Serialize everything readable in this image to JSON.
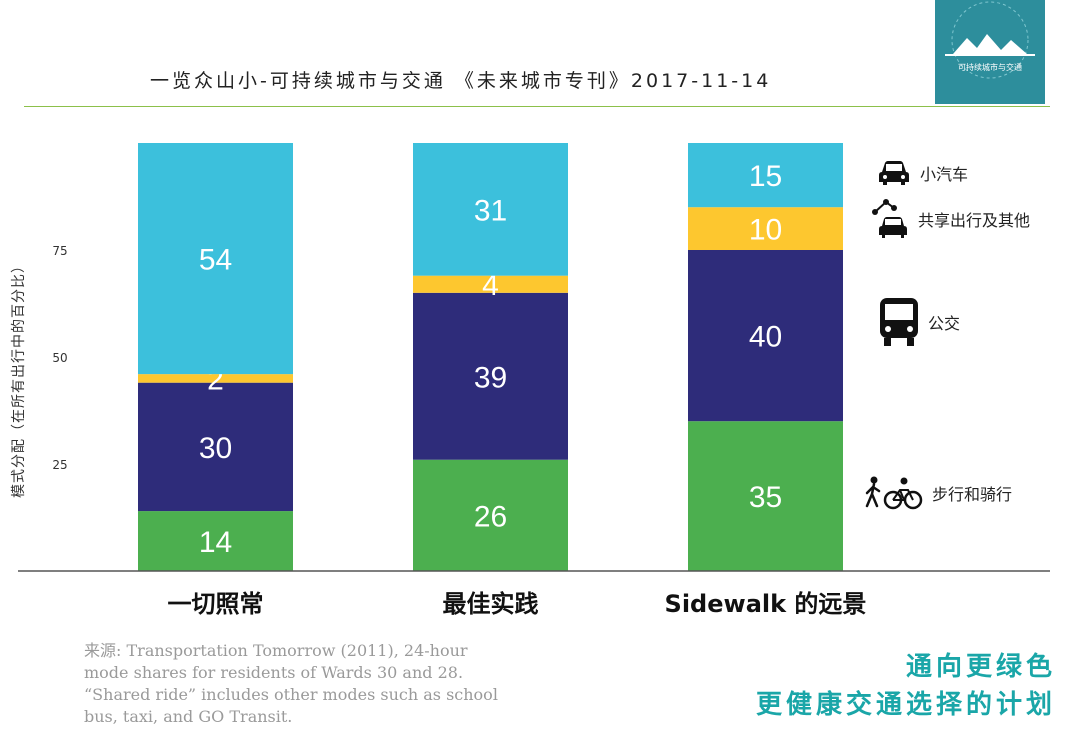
{
  "header": {
    "title": "一览众山小-可持续城市与交通 《未来城市专刊》2017-11-14"
  },
  "logo": {
    "text": "可持续城市与交通",
    "bg_color": "#2d8e9c"
  },
  "colors": {
    "car": "#3cc0dc",
    "shared": "#fdc72f",
    "transit": "#2e2c7a",
    "active": "#4caf4f",
    "rule": "#8cc04a",
    "tagline": "#1aa6a8"
  },
  "legend": [
    {
      "icon": "car-icon",
      "label": "小汽车"
    },
    {
      "icon": "shared-ride-icon",
      "label": "共享出行及其他"
    },
    {
      "icon": "bus-icon",
      "label": "公交"
    },
    {
      "icon": "walk-bike-icon",
      "label": "步行和骑行"
    }
  ],
  "source": {
    "label": "来源:",
    "text": "Transportation Tomorrow (2011), 24-hour mode shares for residents of Wards 30 and 28. “Shared ride” includes other modes such as school bus, taxi, and GO Transit."
  },
  "tagline": {
    "line1": "通向更绿色",
    "line2": "更健康交通选择的计划"
  },
  "chart_data": {
    "type": "bar",
    "stacked": true,
    "categories": [
      "一切照常",
      "最佳实践",
      "Sidewalk 的远景"
    ],
    "series": [
      {
        "name": "步行和骑行",
        "values": [
          14,
          26,
          35
        ]
      },
      {
        "name": "公交",
        "values": [
          30,
          39,
          40
        ]
      },
      {
        "name": "共享出行及其他",
        "values": [
          2,
          4,
          10
        ]
      },
      {
        "name": "小汽车",
        "values": [
          54,
          31,
          15
        ]
      }
    ],
    "ylabel": "模式分配（在所有出行中的百分比）",
    "yticks": [
      25,
      50,
      75
    ],
    "ylim": [
      0,
      100
    ],
    "grid": false,
    "legend_position": "right"
  }
}
